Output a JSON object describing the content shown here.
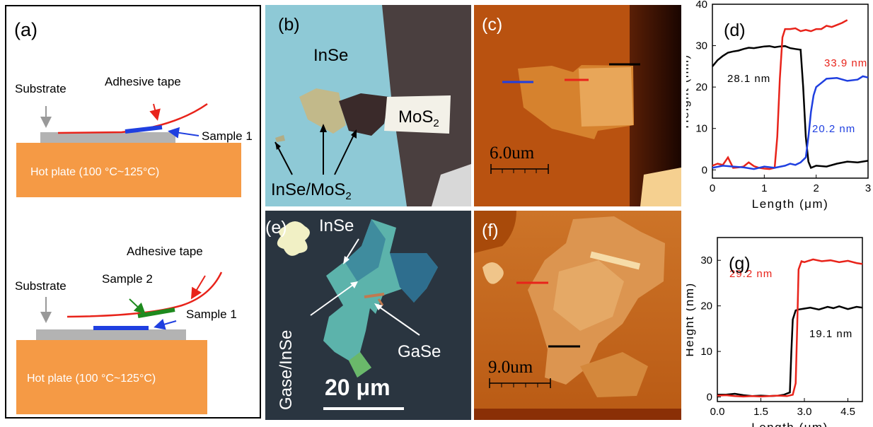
{
  "panels": {
    "a": {
      "label": "(a)",
      "top": {
        "substrate": "Substrate",
        "tape": "Adhesive tape",
        "sample1": "Sample 1",
        "hotplate": "Hot plate (100 °C~125°C)"
      },
      "bottom": {
        "substrate": "Substrate",
        "tape": "Adhesive tape",
        "sample2": "Sample 2",
        "sample1": "Sample 1",
        "hotplate": "Hot plate (100 °C~125°C)"
      }
    },
    "b": {
      "label": "(b)",
      "inse": "InSe",
      "mos2": "MoS",
      "mos2_sub": "2",
      "heterostructure": "InSe/MoS",
      "heterostructure_sub": "2"
    },
    "c": {
      "label": "(c)",
      "scalebar": "6.0um"
    },
    "e": {
      "label": "(e)",
      "inse": "InSe",
      "gase_inse": "Gase/InSe",
      "gase": "GaSe",
      "scalebar": "20 μm"
    },
    "f": {
      "label": "(f)",
      "scalebar": "9.0um"
    }
  },
  "chart_data": [
    {
      "panel": "(d)",
      "type": "line",
      "xlabel": "Length (μm)",
      "ylabel": "Height (nm)",
      "xlim": [
        0,
        3
      ],
      "ylim": [
        -2,
        40
      ],
      "xticks": [
        "0",
        "1",
        "2",
        "3"
      ],
      "yticks": [
        "0",
        "10",
        "20",
        "30",
        "40"
      ],
      "series": [
        {
          "color": "#000000",
          "x": [
            0,
            0.1,
            0.2,
            0.3,
            0.4,
            0.5,
            0.6,
            0.7,
            0.8,
            0.9,
            1.0,
            1.1,
            1.2,
            1.3,
            1.4,
            1.5,
            1.6,
            1.7,
            1.75,
            1.8,
            1.85,
            1.9,
            2.0,
            2.2,
            2.4,
            2.6,
            2.8,
            3.0
          ],
          "y": [
            25,
            26.5,
            27.5,
            28.3,
            28.6,
            28.8,
            29.2,
            29.5,
            29.4,
            29.6,
            29.8,
            29.9,
            29.6,
            29.8,
            29.9,
            29.4,
            29.2,
            29,
            20,
            8,
            2,
            0.5,
            1,
            0.8,
            1.5,
            2,
            1.8,
            2.2
          ]
        },
        {
          "color": "#e8231a",
          "x": [
            0,
            0.1,
            0.2,
            0.3,
            0.4,
            0.5,
            0.6,
            0.7,
            0.8,
            0.9,
            1.0,
            1.1,
            1.2,
            1.25,
            1.3,
            1.35,
            1.4,
            1.5,
            1.6,
            1.7,
            1.8,
            1.9,
            2.0,
            2.1,
            2.2,
            2.3,
            2.4,
            2.5,
            2.6
          ],
          "y": [
            1,
            1.5,
            1.2,
            3,
            0.5,
            0.6,
            0.8,
            1.8,
            0.9,
            0.5,
            0.3,
            0.2,
            0.5,
            8,
            22,
            32,
            34,
            34,
            34.2,
            33.5,
            33.8,
            33.5,
            34,
            34,
            34.8,
            34.5,
            35,
            35.5,
            36.2
          ]
        },
        {
          "color": "#1f3fe0",
          "x": [
            0,
            0.2,
            0.4,
            0.6,
            0.8,
            1.0,
            1.2,
            1.4,
            1.5,
            1.6,
            1.7,
            1.8,
            1.85,
            1.9,
            1.95,
            2.0,
            2.1,
            2.2,
            2.4,
            2.6,
            2.8,
            2.9,
            3.0
          ],
          "y": [
            0.5,
            1,
            0.8,
            0.6,
            0.2,
            0.8,
            0.5,
            1,
            1.5,
            1.2,
            1.8,
            3,
            8,
            14,
            18,
            20,
            21,
            22,
            22.2,
            21.5,
            21.8,
            22.6,
            22.3
          ]
        }
      ],
      "annotations": [
        {
          "text": "33.9 nm",
          "color": "#e8231a"
        },
        {
          "text": "28.1 nm",
          "color": "#000000"
        },
        {
          "text": "20.2 nm",
          "color": "#1f3fe0"
        }
      ]
    },
    {
      "panel": "(g)",
      "type": "line",
      "xlabel": "Length (μm)",
      "ylabel": "Height (nm)",
      "xlim": [
        0,
        5
      ],
      "ylim": [
        -1,
        35
      ],
      "xticks": [
        "0.0",
        "1.5",
        "3.0",
        "4.5"
      ],
      "yticks": [
        "0",
        "10",
        "20",
        "30"
      ],
      "series": [
        {
          "color": "#000000",
          "x": [
            0,
            0.3,
            0.6,
            0.9,
            1.2,
            1.5,
            1.8,
            2.1,
            2.3,
            2.5,
            2.55,
            2.6,
            2.7,
            2.8,
            3.0,
            3.2,
            3.5,
            3.8,
            4.0,
            4.2,
            4.5,
            4.8,
            5.0
          ],
          "y": [
            0.5,
            0.5,
            0.7,
            0.4,
            0.2,
            0.3,
            0.2,
            0.3,
            0.5,
            1,
            10,
            17,
            19,
            19.2,
            19.4,
            19.6,
            19.2,
            19.8,
            19.5,
            19.9,
            19.3,
            19.8,
            19.6
          ]
        },
        {
          "color": "#e8231a",
          "x": [
            0,
            0.3,
            0.6,
            0.9,
            1.2,
            1.5,
            1.8,
            2.1,
            2.4,
            2.6,
            2.7,
            2.75,
            2.8,
            2.9,
            3.0,
            3.3,
            3.6,
            3.9,
            4.2,
            4.5,
            4.8,
            5.0
          ],
          "y": [
            0.3,
            0.4,
            0.2,
            0.1,
            0.2,
            0.1,
            0.2,
            0.3,
            0.2,
            0.5,
            3,
            15,
            28,
            29.8,
            29.6,
            30.2,
            29.8,
            30,
            29.6,
            29.9,
            29.4,
            29.2
          ]
        }
      ],
      "annotations": [
        {
          "text": "29.2 nm",
          "color": "#e8231a"
        },
        {
          "text": "19.1 nm",
          "color": "#000000"
        }
      ]
    }
  ]
}
